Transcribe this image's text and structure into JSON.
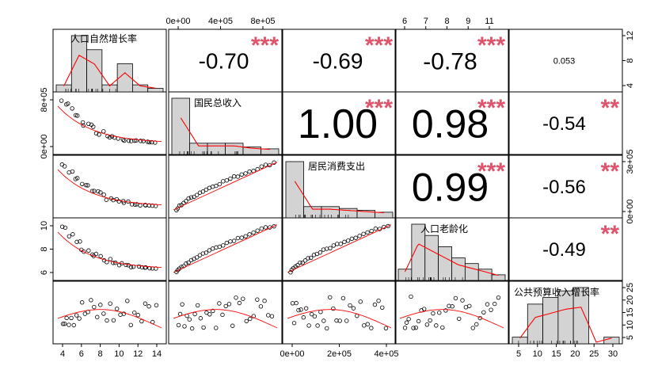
{
  "chart_data": {
    "type": "scatter",
    "variables": [
      "人口自然增长率",
      "国民总收入",
      "居民消费支出",
      "人口老龄化",
      "公共预算收入增长率"
    ],
    "correlations": [
      {
        "row": 0,
        "col": 1,
        "text": "-0.70",
        "stars": "***",
        "size": 28
      },
      {
        "row": 0,
        "col": 2,
        "text": "-0.69",
        "stars": "***",
        "size": 28
      },
      {
        "row": 0,
        "col": 3,
        "text": "-0.78",
        "stars": "***",
        "size": 30
      },
      {
        "row": 0,
        "col": 4,
        "text": "0.053",
        "stars": "",
        "size": 11
      },
      {
        "row": 1,
        "col": 2,
        "text": "1.00",
        "stars": "***",
        "size": 52
      },
      {
        "row": 1,
        "col": 3,
        "text": "0.98",
        "stars": "***",
        "size": 50
      },
      {
        "row": 1,
        "col": 4,
        "text": "-0.54",
        "stars": "**",
        "size": 24
      },
      {
        "row": 2,
        "col": 3,
        "text": "0.99",
        "stars": "***",
        "size": 50
      },
      {
        "row": 2,
        "col": 4,
        "text": "-0.56",
        "stars": "**",
        "size": 24
      },
      {
        "row": 3,
        "col": 4,
        "text": "-0.49",
        "stars": "**",
        "size": 24
      }
    ],
    "axis_ticks": {
      "v1": [
        "4",
        "6",
        "8",
        "10",
        "12",
        "14"
      ],
      "v2": [
        "0e+00",
        "4e+05",
        "8e+05"
      ],
      "v3": [
        "0e+00",
        "2e+05",
        "4e+05"
      ],
      "v4": [
        "6",
        "7",
        "8",
        "9",
        "11"
      ],
      "v5": [
        "5",
        "10",
        "15",
        "20",
        "25",
        "30"
      ],
      "v1_right": [
        "4",
        "8",
        "12"
      ],
      "v2_left": [
        "0e+00",
        "8e+05"
      ],
      "v3_right": [
        "0e+00",
        "3e+05"
      ],
      "v4_left": [
        "6",
        "8",
        "10"
      ],
      "v5_right": [
        "5",
        "10",
        "15",
        "20",
        "25"
      ]
    },
    "histograms": [
      {
        "var": 0,
        "range": [
          3,
          15
        ],
        "counts": [
          1,
          8,
          6,
          1,
          4,
          1,
          0.5
        ]
      },
      {
        "var": 1,
        "range": [
          0,
          1050000
        ],
        "counts": [
          15,
          3,
          3,
          3,
          2,
          1.5
        ]
      },
      {
        "var": 2,
        "range": [
          0,
          420000
        ],
        "counts": [
          15,
          3,
          3,
          2.5,
          2,
          1.5
        ]
      },
      {
        "var": 3,
        "range": [
          5.2,
          12.5
        ],
        "counts": [
          1,
          5,
          4,
          3,
          2,
          1.5,
          1,
          0.5
        ]
      },
      {
        "var": 4,
        "range": [
          2,
          33
        ],
        "counts": [
          1,
          6,
          7,
          8,
          8.5,
          0,
          1
        ]
      }
    ],
    "grid": false,
    "colors": {
      "points": "#000000",
      "smooth": "#FF0000",
      "stars": "#DF536B",
      "bars": "#D3D3D3"
    }
  }
}
